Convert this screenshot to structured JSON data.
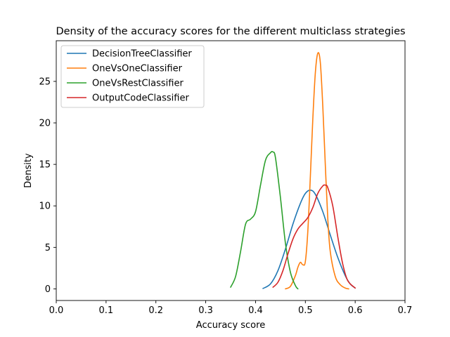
{
  "chart_data": {
    "type": "line",
    "title": "Density of the accuracy scores for the different multiclass strategies",
    "xlabel": "Accuracy score",
    "ylabel": "Density",
    "xlim": [
      0.0,
      0.7
    ],
    "ylim": [
      -1.4,
      29.9
    ],
    "x_ticks": [
      "0.0",
      "0.1",
      "0.2",
      "0.3",
      "0.4",
      "0.5",
      "0.6",
      "0.7"
    ],
    "y_ticks": [
      "0",
      "5",
      "10",
      "15",
      "20",
      "25"
    ],
    "grid": false,
    "legend_position": "top-left",
    "series": [
      {
        "name": "DecisionTreeClassifier",
        "color": "#1f77b4",
        "x": [
          0.415,
          0.43,
          0.445,
          0.46,
          0.475,
          0.49,
          0.5,
          0.51,
          0.52,
          0.535,
          0.55,
          0.565,
          0.58,
          0.59,
          0.6
        ],
        "y": [
          0.05,
          0.6,
          2.2,
          4.8,
          7.8,
          10.3,
          11.5,
          11.9,
          11.4,
          9.3,
          6.5,
          3.8,
          1.6,
          0.6,
          0.1
        ]
      },
      {
        "name": "OneVsOneClassifier",
        "color": "#ff7f0e",
        "x": [
          0.46,
          0.47,
          0.48,
          0.485,
          0.49,
          0.495,
          0.5,
          0.505,
          0.51,
          0.515,
          0.52,
          0.525,
          0.53,
          0.535,
          0.54,
          0.545,
          0.55,
          0.56,
          0.57,
          0.58,
          0.587
        ],
        "y": [
          0.0,
          0.3,
          1.6,
          2.6,
          3.2,
          2.9,
          3.3,
          7.0,
          13.5,
          20.5,
          26.0,
          28.4,
          27.3,
          22.0,
          15.0,
          8.5,
          4.5,
          1.5,
          0.5,
          0.1,
          0.0
        ]
      },
      {
        "name": "OneVsRestClassifier",
        "color": "#2ca02c",
        "x": [
          0.35,
          0.36,
          0.37,
          0.38,
          0.39,
          0.4,
          0.41,
          0.42,
          0.43,
          0.435,
          0.44,
          0.45,
          0.46,
          0.47,
          0.48,
          0.485
        ],
        "y": [
          0.2,
          1.5,
          4.5,
          7.8,
          8.4,
          9.3,
          12.5,
          15.5,
          16.4,
          16.5,
          15.8,
          11.0,
          5.5,
          2.0,
          0.4,
          0.0
        ]
      },
      {
        "name": "OutputCodeClassifier",
        "color": "#d62728",
        "x": [
          0.435,
          0.445,
          0.455,
          0.465,
          0.475,
          0.485,
          0.495,
          0.505,
          0.515,
          0.525,
          0.535,
          0.54,
          0.545,
          0.555,
          0.565,
          0.575,
          0.585,
          0.6
        ],
        "y": [
          0.2,
          0.8,
          2.2,
          4.2,
          6.0,
          7.2,
          7.9,
          8.6,
          9.8,
          11.5,
          12.4,
          12.5,
          12.2,
          10.0,
          6.3,
          3.0,
          1.0,
          0.1
        ]
      }
    ]
  }
}
